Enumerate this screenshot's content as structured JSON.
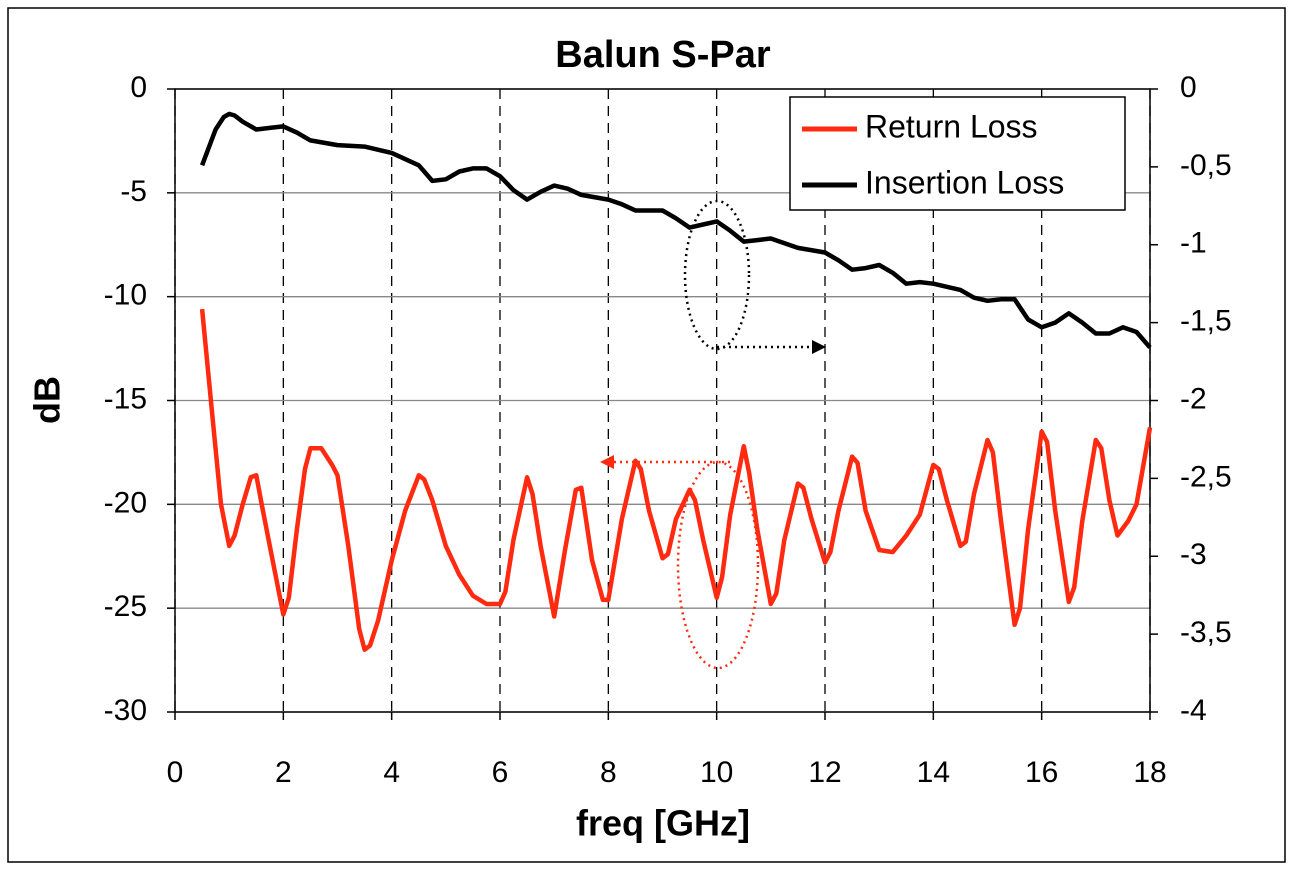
{
  "chart_data": {
    "type": "line",
    "title": "Balun S-Par",
    "xlabel": "freq [GHz]",
    "ylabel": "dB",
    "xlim": [
      0,
      18
    ],
    "xticks": [
      0,
      2,
      4,
      6,
      8,
      10,
      12,
      14,
      16,
      18
    ],
    "ylim": [
      -30,
      0
    ],
    "yticks": [
      -30,
      -25,
      -20,
      -15,
      -10,
      -5,
      0
    ],
    "y2lim": [
      -4,
      0
    ],
    "y2ticks": [
      -4,
      {
        "value": -3.5,
        "label": "-3,5"
      },
      -3,
      {
        "value": -2.5,
        "label": "-2,5"
      },
      -2,
      {
        "value": -1.5,
        "label": "-1,5"
      },
      -1,
      {
        "value": -0.5,
        "label": "-0,5"
      },
      0
    ],
    "grid": true,
    "legend": "upper right",
    "series": [
      {
        "name": "Return Loss",
        "color": "#ff2a10",
        "axis": "y",
        "x": [
          0.5,
          0.7,
          0.85,
          1.0,
          1.1,
          1.25,
          1.4,
          1.5,
          1.6,
          1.75,
          2.0,
          2.1,
          2.25,
          2.4,
          2.5,
          2.7,
          2.9,
          3.0,
          3.2,
          3.4,
          3.5,
          3.6,
          3.75,
          4.0,
          4.25,
          4.5,
          4.6,
          4.75,
          5.0,
          5.25,
          5.5,
          5.75,
          6.0,
          6.1,
          6.25,
          6.5,
          6.6,
          6.75,
          7.0,
          7.2,
          7.4,
          7.5,
          7.7,
          7.9,
          8.0,
          8.25,
          8.5,
          8.6,
          8.75,
          9.0,
          9.1,
          9.25,
          9.5,
          9.6,
          9.75,
          10.0,
          10.1,
          10.25,
          10.5,
          10.6,
          10.75,
          11.0,
          11.1,
          11.25,
          11.5,
          11.6,
          11.75,
          12.0,
          12.1,
          12.25,
          12.5,
          12.6,
          12.75,
          13.0,
          13.25,
          13.5,
          13.75,
          14.0,
          14.1,
          14.25,
          14.5,
          14.6,
          14.75,
          15.0,
          15.1,
          15.25,
          15.5,
          15.6,
          15.75,
          16.0,
          16.1,
          16.25,
          16.5,
          16.6,
          16.75,
          17.0,
          17.1,
          17.25,
          17.4,
          17.6,
          17.75,
          18.0
        ],
        "values": [
          -10.6,
          -16,
          -20,
          -22.0,
          -21.5,
          -20,
          -18.7,
          -18.6,
          -20,
          -22,
          -25.3,
          -24.5,
          -21.2,
          -18.3,
          -17.3,
          -17.3,
          -18.1,
          -18.6,
          -22,
          -26,
          -27,
          -26.8,
          -25.6,
          -22.7,
          -20.3,
          -18.6,
          -18.8,
          -19.8,
          -22,
          -23.4,
          -24.4,
          -24.8,
          -24.8,
          -24.2,
          -21.7,
          -18.7,
          -19.5,
          -22,
          -25.4,
          -22.2,
          -19.3,
          -19.2,
          -22.7,
          -24.6,
          -24.6,
          -20.7,
          -17.9,
          -18.3,
          -20.3,
          -22.6,
          -22.4,
          -20.7,
          -19.3,
          -19.8,
          -21.7,
          -24.5,
          -23.5,
          -20.5,
          -17.2,
          -18.5,
          -21.2,
          -24.8,
          -24.3,
          -21.7,
          -19,
          -19.2,
          -20.7,
          -22.8,
          -22.3,
          -20.3,
          -17.7,
          -18,
          -20.3,
          -22.2,
          -22.3,
          -21.5,
          -20.5,
          -18.1,
          -18.3,
          -19.8,
          -22,
          -21.8,
          -19.5,
          -16.9,
          -17.5,
          -20.8,
          -25.8,
          -25,
          -21.2,
          -16.5,
          -17,
          -20.3,
          -24.7,
          -24,
          -20.8,
          -16.9,
          -17.3,
          -19.8,
          -21.5,
          -20.8,
          -20,
          -16.3
        ]
      },
      {
        "name": "Insertion Loss",
        "color": "#000000",
        "axis": "y2",
        "x": [
          0.5,
          0.75,
          0.9,
          1.0,
          1.1,
          1.25,
          1.5,
          1.75,
          2.0,
          2.25,
          2.5,
          3.0,
          3.5,
          4.0,
          4.5,
          4.75,
          5.0,
          5.25,
          5.5,
          5.75,
          6.0,
          6.25,
          6.5,
          6.75,
          7.0,
          7.25,
          7.5,
          8.0,
          8.25,
          8.5,
          9.0,
          9.25,
          9.5,
          9.75,
          10.0,
          10.25,
          10.5,
          10.75,
          11.0,
          11.5,
          12.0,
          12.25,
          12.5,
          12.75,
          13.0,
          13.25,
          13.5,
          13.75,
          14.0,
          14.5,
          14.75,
          15.0,
          15.25,
          15.5,
          15.75,
          16.0,
          16.25,
          16.5,
          16.75,
          17.0,
          17.25,
          17.5,
          17.75,
          18.0
        ],
        "values": [
          -0.49,
          -0.26,
          -0.18,
          -0.16,
          -0.17,
          -0.21,
          -0.26,
          -0.25,
          -0.24,
          -0.28,
          -0.33,
          -0.36,
          -0.37,
          -0.41,
          -0.49,
          -0.59,
          -0.58,
          -0.53,
          -0.51,
          -0.51,
          -0.56,
          -0.65,
          -0.71,
          -0.66,
          -0.62,
          -0.64,
          -0.68,
          -0.71,
          -0.74,
          -0.78,
          -0.78,
          -0.83,
          -0.89,
          -0.87,
          -0.85,
          -0.91,
          -0.98,
          -0.97,
          -0.96,
          -1.02,
          -1.05,
          -1.1,
          -1.16,
          -1.15,
          -1.13,
          -1.18,
          -1.25,
          -1.24,
          -1.25,
          -1.29,
          -1.34,
          -1.36,
          -1.35,
          -1.35,
          -1.48,
          -1.53,
          -1.5,
          -1.44,
          -1.5,
          -1.57,
          -1.57,
          -1.53,
          -1.56,
          -1.66
        ]
      }
    ]
  }
}
